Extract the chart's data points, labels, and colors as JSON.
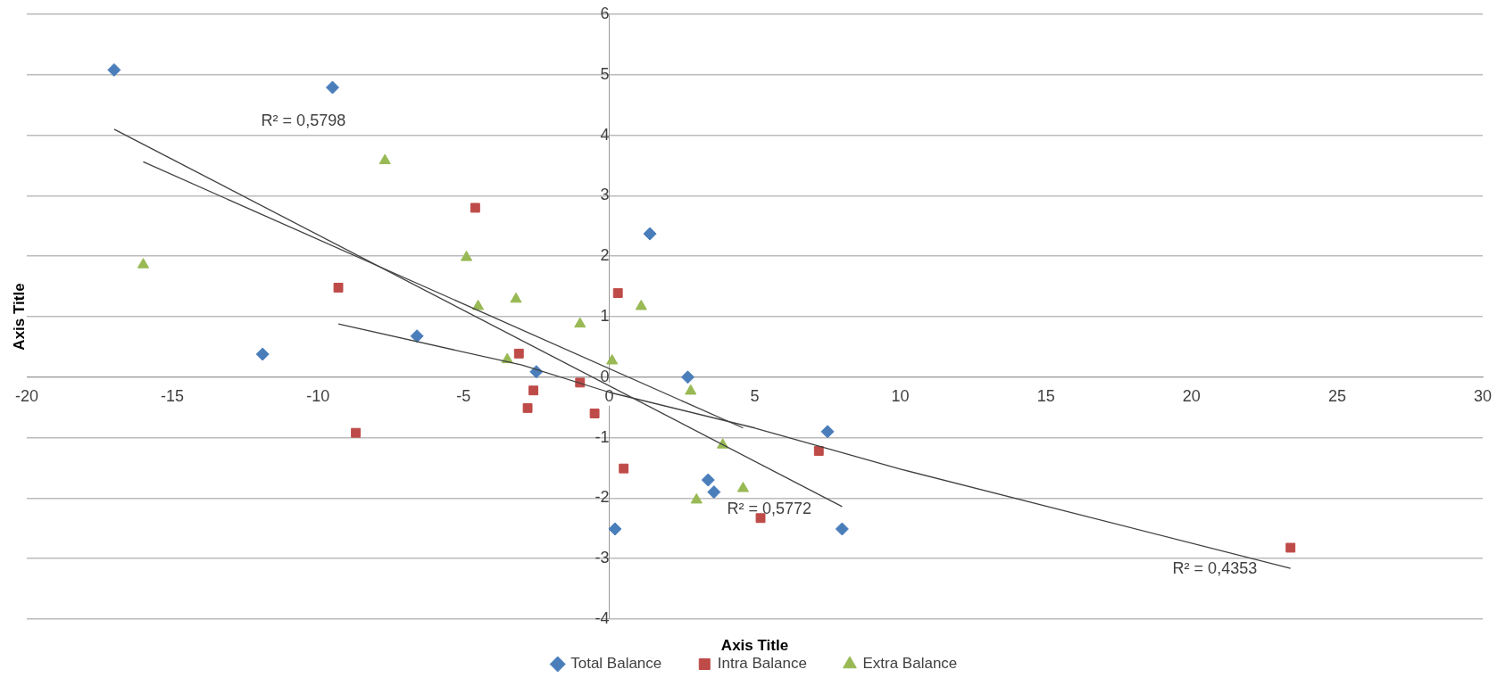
{
  "chart_data": {
    "type": "scatter",
    "xlabel": "Axis Title",
    "ylabel": "Axis Title",
    "xlim": [
      -20,
      30
    ],
    "ylim": [
      -4,
      6
    ],
    "xticks": [
      -20,
      -15,
      -10,
      -5,
      0,
      5,
      10,
      15,
      20,
      25,
      30
    ],
    "yticks": [
      -4,
      -3,
      -2,
      -1,
      0,
      1,
      2,
      3,
      4,
      5,
      6
    ],
    "grid": "y",
    "legend": "bottom",
    "series": [
      {
        "name": "Total Balance",
        "color": "#4a7ebb",
        "marker": "diamond",
        "x": [
          -17.0,
          -9.5,
          -11.9,
          -6.6,
          -2.5,
          1.4,
          2.7,
          0.2,
          3.4,
          3.6,
          7.5,
          8.0
        ],
        "values": [
          5.08,
          4.79,
          0.38,
          0.68,
          0.09,
          2.37,
          0,
          -2.51,
          -1.7,
          -1.9,
          -0.9,
          -2.51
        ]
      },
      {
        "name": "Intra Balance",
        "color": "#be4b48",
        "marker": "square",
        "x": [
          -4.6,
          -9.3,
          -8.7,
          -3.1,
          -2.6,
          -2.8,
          -1.0,
          -0.5,
          0.3,
          0.5,
          5.2,
          7.2,
          23.4
        ],
        "values": [
          2.8,
          1.48,
          -0.92,
          0.39,
          -0.22,
          -0.51,
          -0.09,
          -0.6,
          1.39,
          -1.51,
          -2.33,
          -1.22,
          -2.82
        ]
      },
      {
        "name": "Extra Balance",
        "color": "#98b954",
        "marker": "triangle",
        "x": [
          -16.0,
          -7.7,
          -4.9,
          -4.5,
          -3.2,
          -3.5,
          -1.0,
          1.1,
          0.1,
          2.8,
          3.9,
          4.6,
          3.0
        ],
        "values": [
          1.86,
          3.58,
          1.98,
          1.17,
          1.29,
          0.29,
          0.88,
          1.17,
          0.27,
          -0.23,
          -1.12,
          -1.84,
          -2.03
        ]
      },
      {
        "type": "line",
        "color": "#404040",
        "marker": "none",
        "x": [
          -17.0,
          8.0
        ],
        "values": [
          4.1,
          -2.14
        ]
      },
      {
        "type": "line",
        "color": "#404040",
        "marker": "none",
        "x": [
          -9.3,
          -3,
          0,
          5,
          10,
          23.4
        ],
        "values": [
          0.88,
          0.2,
          -0.25,
          -0.84,
          -1.52,
          -3.16
        ]
      },
      {
        "type": "line",
        "color": "#404040",
        "marker": "none",
        "x": [
          -16.0,
          4.6
        ],
        "values": [
          3.56,
          -0.84
        ]
      }
    ],
    "annotations": [
      "R² = 0,5798",
      "R² = 0,5772",
      "R² = 0,4353"
    ]
  }
}
